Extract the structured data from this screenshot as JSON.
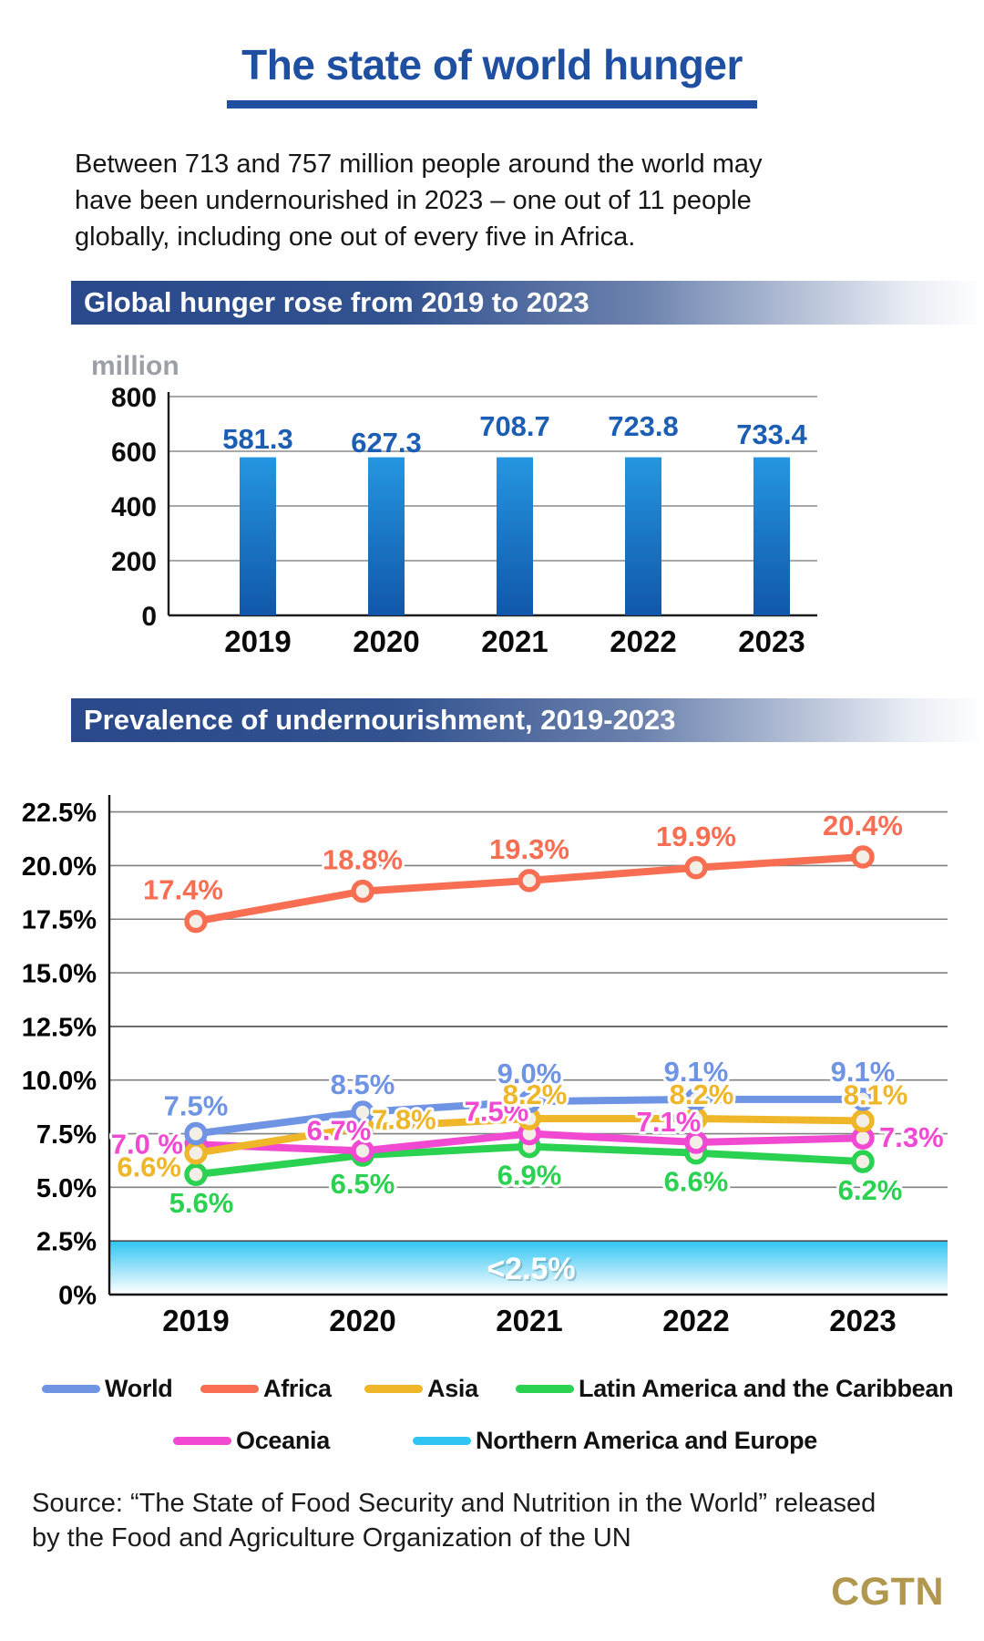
{
  "page": {
    "title": "The state of world hunger",
    "intro_lines": [
      "Between 713 and 757 million people around the world may",
      "have been undernourished in 2023 – one out of 11 people",
      "globally, including one out of every five in Africa."
    ],
    "source_lines": [
      "Source: “The State of Food Security and Nutrition in the World” released",
      "by the Food and Agriculture Organization of the UN"
    ],
    "brand": "CGTN",
    "colors": {
      "title_blue": "#1e4fa1",
      "banner_blue": "#29498b",
      "brand_gold": "#b2974e"
    }
  },
  "sections": [
    {
      "header": "Global hunger rose from 2019 to 2023"
    },
    {
      "header": "Prevalence of undernourishment, 2019-2023"
    }
  ],
  "chart_data": [
    {
      "type": "bar",
      "title": "Global hunger rose from 2019 to 2023",
      "unit_label": "million",
      "categories": [
        "2019",
        "2020",
        "2021",
        "2022",
        "2023"
      ],
      "values": [
        581.3,
        627.3,
        708.7,
        723.8,
        733.4
      ],
      "value_labels": [
        "581.3",
        "627.3",
        "708.7",
        "723.8",
        "733.4"
      ],
      "ylim": [
        0,
        800
      ],
      "yticks": [
        0,
        200,
        400,
        600,
        800
      ],
      "grid": true,
      "bar_color_top": "#2496e1",
      "bar_color_bottom": "#1157a9",
      "value_label_color": "#1b5eb4",
      "displayed_bar_value": 578,
      "note": "all bars are drawn at the same height (~580) in the source graphic despite differing values"
    },
    {
      "type": "line",
      "title": "Prevalence of undernourishment, 2019-2023",
      "x": [
        "2019",
        "2020",
        "2021",
        "2022",
        "2023"
      ],
      "ylim": [
        0,
        23.5
      ],
      "ytick_step": 2.5,
      "ytick_labels": [
        "0%",
        "2.5%",
        "5.0%",
        "7.5%",
        "10.0%",
        "12.5%",
        "15.0%",
        "17.5%",
        "20.0%",
        "22.5%"
      ],
      "grid": true,
      "legend_position": "bottom",
      "series": [
        {
          "name": "World",
          "color": "#6f94e4",
          "values": [
            7.5,
            8.5,
            9.0,
            9.1,
            9.1
          ],
          "labels": [
            "7.5%",
            "8.5%",
            "9.0%",
            "9.1%",
            "9.1%"
          ]
        },
        {
          "name": "Africa",
          "color": "#f76e52",
          "values": [
            17.4,
            18.8,
            19.3,
            19.9,
            20.4
          ],
          "labels": [
            "17.4%",
            "18.8%",
            "19.3%",
            "19.9%",
            "20.4%"
          ]
        },
        {
          "name": "Asia",
          "color": "#f0b62a",
          "values": [
            6.6,
            7.8,
            8.2,
            8.2,
            8.1
          ],
          "labels": [
            "6.6%",
            "7.8%",
            "8.2%",
            "8.2%",
            "8.1%"
          ]
        },
        {
          "name": "Latin America and the Caribbean",
          "color": "#2bd150",
          "values": [
            5.6,
            6.5,
            6.9,
            6.6,
            6.2
          ],
          "labels": [
            "5.6%",
            "6.5%",
            "6.9%",
            "6.6%",
            "6.2%"
          ]
        },
        {
          "name": "Oceania",
          "color": "#f149d1",
          "values": [
            7.0,
            6.7,
            7.5,
            7.1,
            7.3
          ],
          "labels": [
            "7.0 %",
            "6.7%",
            "7.5%",
            "7.1%",
            "7.3%"
          ]
        }
      ],
      "band": {
        "name": "Northern America and Europe",
        "color": "#2ec5f2",
        "label": "<2.5%",
        "range": [
          0,
          2.5
        ]
      },
      "legend_rows": [
        [
          "World",
          "Africa",
          "Asia",
          "Latin America and the Caribbean"
        ],
        [
          "Oceania",
          "Northern America and Europe"
        ]
      ]
    }
  ]
}
